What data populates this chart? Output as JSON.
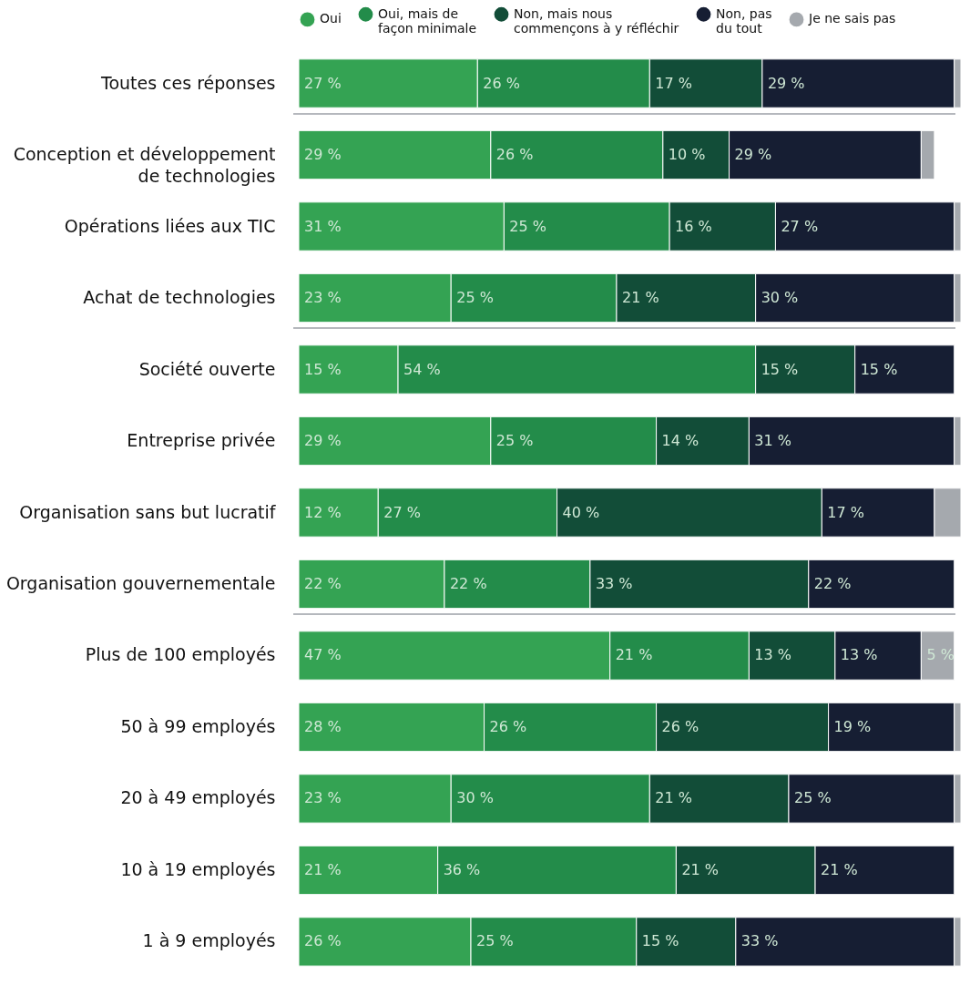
{
  "chart_data": {
    "type": "bar",
    "orientation": "horizontal",
    "stacked": true,
    "legend": "top",
    "categories": [
      "Toutes ces réponses",
      "Conception et développement de technologies",
      "Opérations liées aux TIC",
      "Achat de technologies",
      "Société ouverte",
      "Entreprise privée",
      "Organisation sans but lucratif",
      "Organisation gouvernementale",
      "Plus de 100 employés",
      "50 à 99 employés",
      "20 à 49 employés",
      "10 à 19 employés",
      "1 à 9 employés"
    ],
    "series": [
      {
        "name": "Oui",
        "color": "#34a353",
        "values": [
          27,
          29,
          31,
          23,
          15,
          29,
          12,
          22,
          47,
          28,
          23,
          21,
          26
        ],
        "value_labels": [
          "27 %",
          "29 %",
          "31 %",
          "23 %",
          "15 %",
          "29 %",
          "12 %",
          "22 %",
          "47 %",
          "28 %",
          "23 %",
          "21 %",
          "26 %"
        ]
      },
      {
        "name": "Oui, mais de façon minimale",
        "color": "#238c4a",
        "values": [
          26,
          26,
          25,
          25,
          54,
          25,
          27,
          22,
          21,
          26,
          30,
          36,
          25
        ],
        "value_labels": [
          "26 %",
          "26 %",
          "25 %",
          "25 %",
          "54 %",
          "25 %",
          "27 %",
          "22 %",
          "21 %",
          "26 %",
          "30 %",
          "36 %",
          "25 %"
        ]
      },
      {
        "name": "Non, mais nous commençons à y réfléchir",
        "color": "#124d38",
        "values": [
          17,
          10,
          16,
          21,
          15,
          14,
          40,
          33,
          13,
          26,
          21,
          21,
          15
        ],
        "value_labels": [
          "17 %",
          "10 %",
          "16 %",
          "21 %",
          "15 %",
          "14 %",
          "40 %",
          "33 %",
          "13 %",
          "26 %",
          "21 %",
          "21 %",
          "15 %"
        ]
      },
      {
        "name": "Non, pas du tout",
        "color": "#161e33",
        "values": [
          29,
          29,
          27,
          30,
          15,
          31,
          17,
          22,
          13,
          19,
          25,
          21,
          33
        ],
        "value_labels": [
          "29 %",
          "29 %",
          "27 %",
          "30 %",
          "15 %",
          "31 %",
          "17 %",
          "22 %",
          "13 %",
          "19 %",
          "25 %",
          "21 %",
          "33 %"
        ]
      },
      {
        "name": "Je ne sais pas",
        "color": "#a5a9ae",
        "values": [
          1,
          2,
          1,
          1,
          null,
          1,
          4,
          null,
          5,
          1,
          1,
          null,
          1
        ],
        "value_labels": [
          null,
          null,
          null,
          null,
          null,
          null,
          null,
          null,
          "5 %",
          null,
          null,
          null,
          null
        ]
      }
    ]
  }
}
